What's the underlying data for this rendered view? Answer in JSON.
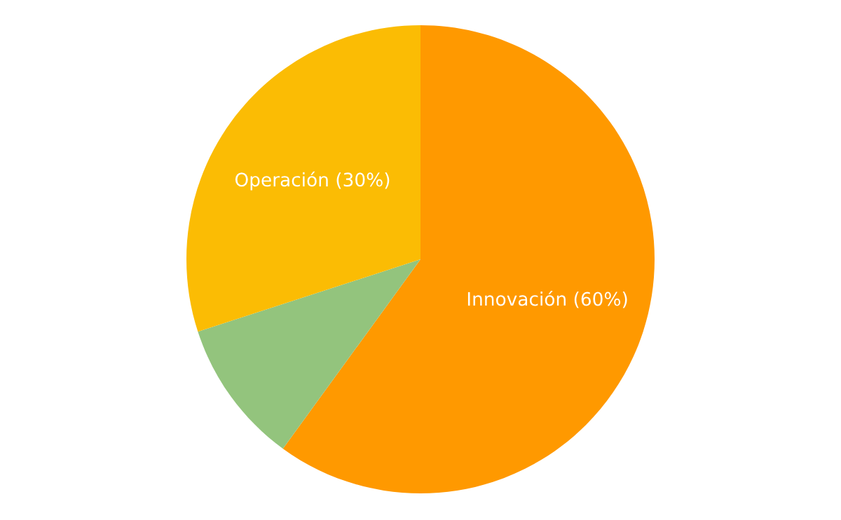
{
  "chart_data": {
    "type": "pie",
    "categories": [
      "Innovación (60%)",
      null,
      "Operación (30%)"
    ],
    "values": [
      60,
      10,
      30
    ],
    "colors": [
      "#ff9900",
      "#93c47d",
      "#fbbc04"
    ]
  }
}
